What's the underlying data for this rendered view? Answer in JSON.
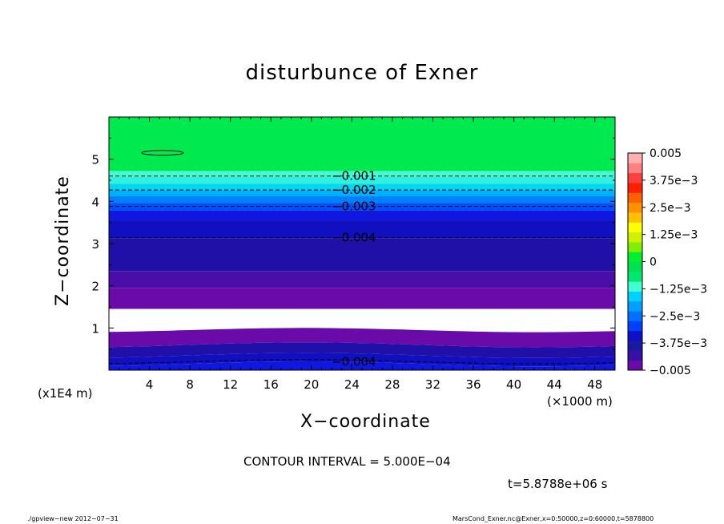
{
  "chart_data": {
    "type": "heatmap",
    "title": "disturbunce of Exner",
    "xlabel": "X−coordinate",
    "ylabel": "Z−coordinate",
    "x_unit": "(×1000 m)",
    "y_unit": "(x1E4 m)",
    "xlim": [
      0,
      50
    ],
    "ylim": [
      0,
      6
    ],
    "x_ticks": [
      "4",
      "8",
      "12",
      "16",
      "20",
      "24",
      "28",
      "32",
      "36",
      "40",
      "44",
      "48"
    ],
    "y_ticks": [
      "1",
      "2",
      "3",
      "4",
      "5"
    ],
    "colorbar": {
      "ticks": [
        "0.005",
        "3.75e−3",
        "2.5e−3",
        "1.25e−3",
        "0",
        "−1.25e−3",
        "−2.5e−3",
        "−3.75e−3",
        "−0.005"
      ],
      "colors": [
        "#6a0aa8",
        "#3a0fa8",
        "#1a1aa0",
        "#1010c8",
        "#0040ff",
        "#0070ff",
        "#00a0ff",
        "#00d0ff",
        "#40ffd0",
        "#00e870",
        "#00e050",
        "#00f030",
        "#80f000",
        "#d0f000",
        "#ffff00",
        "#ffc000",
        "#ff9000",
        "#ff6000",
        "#ff2000",
        "#ff4040",
        "#ff8080",
        "#ffb0b0"
      ]
    },
    "bands": [
      {
        "z_bottom": 4.72,
        "z_top": 6.0,
        "value": 0.0,
        "color": "#00ea50"
      },
      {
        "z_bottom": 4.58,
        "z_top": 4.72,
        "value": -0.0005,
        "color": "#40ffd0"
      },
      {
        "z_bottom": 4.42,
        "z_top": 4.58,
        "value": -0.001,
        "color": "#30f0e0"
      },
      {
        "z_bottom": 4.27,
        "z_top": 4.42,
        "value": -0.0015,
        "color": "#00d8f0"
      },
      {
        "z_bottom": 4.12,
        "z_top": 4.27,
        "value": -0.002,
        "color": "#00b0ff"
      },
      {
        "z_bottom": 3.96,
        "z_top": 4.12,
        "value": -0.0025,
        "color": "#0080ff"
      },
      {
        "z_bottom": 3.78,
        "z_top": 3.96,
        "value": -0.003,
        "color": "#0050ff"
      },
      {
        "z_bottom": 3.55,
        "z_top": 3.78,
        "value": -0.0035,
        "color": "#1018e0"
      },
      {
        "z_bottom": 3.12,
        "z_top": 3.55,
        "value": -0.004,
        "color": "#1010c0"
      },
      {
        "z_bottom": 2.35,
        "z_top": 3.12,
        "value": -0.0045,
        "color": "#2010a8"
      },
      {
        "z_bottom": 1.95,
        "z_top": 2.35,
        "value": -0.0048,
        "color": "#4a0ea8"
      },
      {
        "z_bottom": 1.45,
        "z_top": 1.95,
        "value": -0.005,
        "color": "#6a0aa8"
      },
      {
        "z_bottom": 0.95,
        "z_top": 1.45,
        "value": null,
        "color": "#ffffff"
      },
      {
        "z_bottom": 0.6,
        "z_top": 0.95,
        "value": -0.005,
        "color": "#6a0aa8"
      },
      {
        "z_bottom": 0.35,
        "z_top": 0.6,
        "value": -0.0045,
        "color": "#2010a8"
      },
      {
        "z_bottom": 0.15,
        "z_top": 0.35,
        "value": -0.004,
        "color": "#1010c0"
      },
      {
        "z_bottom": 0.0,
        "z_top": 0.15,
        "value": -0.0035,
        "color": "#1018e0"
      }
    ],
    "contour_lines": [
      {
        "z": 4.6,
        "label": "−0.001",
        "label_x": 22
      },
      {
        "z": 4.27,
        "label": "−0.002",
        "label_x": 22
      },
      {
        "z": 3.88,
        "label": "−0.003",
        "label_x": 22
      },
      {
        "z": 3.14,
        "label": "−0.004",
        "label_x": 22
      },
      {
        "z": 0.2,
        "label": "−0.004",
        "label_x": 22
      }
    ],
    "grid": false,
    "legend": "right colorbar"
  },
  "annotations": {
    "contour_interval": "CONTOUR INTERVAL = 5.000E−04",
    "time": "t=5.8788e+06 s",
    "footer_left": "./gpview−new  2012−07−31",
    "footer_right": "MarsCond_Exner.nc@Exner,x=0:50000,z=0:60000,t=5878800"
  }
}
